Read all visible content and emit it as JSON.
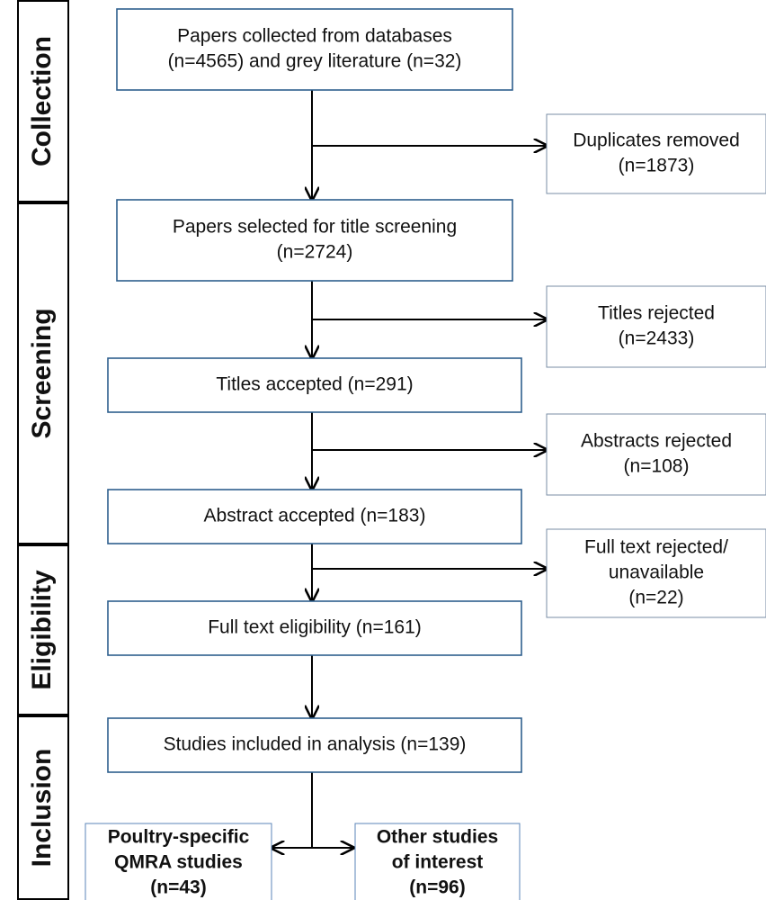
{
  "stages": [
    "Collection",
    "Screening",
    "Eligibility",
    "Inclusion"
  ],
  "nodes": [
    {
      "lines": [
        "Papers collected from databases",
        "(n=4565) and grey literature (n=32)"
      ]
    },
    {
      "lines": [
        "Papers selected for title screening",
        "(n=2724)"
      ]
    },
    {
      "lines": [
        "Titles accepted (n=291)"
      ]
    },
    {
      "lines": [
        "Abstract accepted (n=183)"
      ]
    },
    {
      "lines": [
        "Full text eligibility (n=161)"
      ]
    },
    {
      "lines": [
        "Studies included in analysis (n=139)"
      ]
    }
  ],
  "excluded": [
    {
      "lines": [
        "Duplicates removed",
        "(n=1873)"
      ]
    },
    {
      "lines": [
        "Titles rejected",
        "(n=2433)"
      ]
    },
    {
      "lines": [
        "Abstracts rejected",
        "(n=108)"
      ]
    },
    {
      "lines": [
        "Full text rejected/",
        "unavailable",
        "(n=22)"
      ]
    }
  ],
  "outcomes": [
    {
      "lines": [
        "Poultry-specific",
        "QMRA studies",
        "(n=43)"
      ]
    },
    {
      "lines": [
        "Other studies",
        "of interest",
        "(n=96)"
      ]
    }
  ]
}
